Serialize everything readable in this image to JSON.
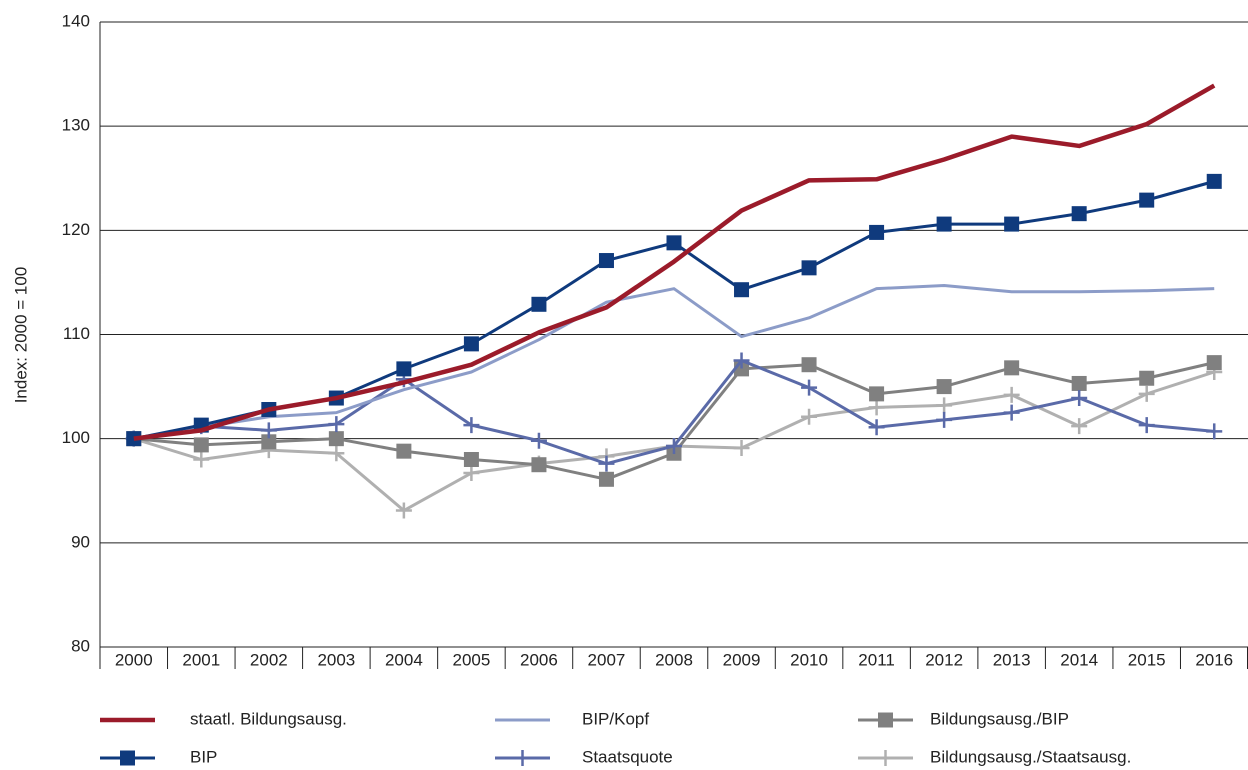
{
  "chart_data": {
    "type": "line",
    "y_label": "Index: 2000 = 100",
    "categories": [
      "2000",
      "2001",
      "2002",
      "2003",
      "2004",
      "2005",
      "2006",
      "2007",
      "2008",
      "2009",
      "2010",
      "2011",
      "2012",
      "2013",
      "2014",
      "2015",
      "2016"
    ],
    "ylim": [
      80,
      140
    ],
    "yticks": [
      80,
      90,
      100,
      110,
      120,
      130,
      140
    ],
    "grid": true,
    "series": [
      {
        "name": "staatl. Bildungsausg.",
        "color": "#9b1b2a",
        "marker": "none",
        "values": [
          100,
          100.8,
          102.8,
          103.9,
          105.4,
          107.1,
          110.2,
          112.6,
          117.0,
          121.9,
          124.8,
          124.9,
          126.8,
          129.0,
          128.1,
          130.2,
          133.9
        ]
      },
      {
        "name": "BIP/Kopf",
        "color": "#8c9cc8",
        "marker": "none",
        "values": [
          100,
          101.1,
          102.1,
          102.5,
          104.7,
          106.4,
          109.5,
          113.1,
          114.4,
          109.8,
          111.6,
          114.4,
          114.7,
          114.1,
          114.1,
          114.2,
          114.4
        ]
      },
      {
        "name": "Bildungsausg./BIP",
        "color": "#808080",
        "marker": "square",
        "values": [
          100,
          99.4,
          99.7,
          100.0,
          98.8,
          98.0,
          97.5,
          96.1,
          98.6,
          106.7,
          107.1,
          104.3,
          105.0,
          106.8,
          105.3,
          105.8,
          107.3
        ]
      },
      {
        "name": "BIP",
        "color": "#0f3a7d",
        "marker": "square",
        "values": [
          100,
          101.3,
          102.8,
          103.9,
          106.7,
          109.1,
          112.9,
          117.1,
          118.8,
          114.3,
          116.4,
          119.8,
          120.6,
          120.6,
          121.6,
          122.9,
          124.7
        ]
      },
      {
        "name": "Staatsquote",
        "color": "#5a6aa8",
        "marker": "plus",
        "values": [
          100,
          101.2,
          100.8,
          101.4,
          105.7,
          101.3,
          99.8,
          97.6,
          99.3,
          107.5,
          104.9,
          101.1,
          101.8,
          102.5,
          103.9,
          101.3,
          100.7
        ]
      },
      {
        "name": "Bildungsausg./Staatsausg.",
        "color": "#b0b0b0",
        "marker": "plus",
        "values": [
          100,
          98.0,
          98.9,
          98.6,
          93.1,
          96.7,
          97.6,
          98.3,
          99.3,
          99.1,
          102.1,
          103.0,
          103.2,
          104.2,
          101.2,
          104.3,
          106.4
        ]
      }
    ]
  }
}
